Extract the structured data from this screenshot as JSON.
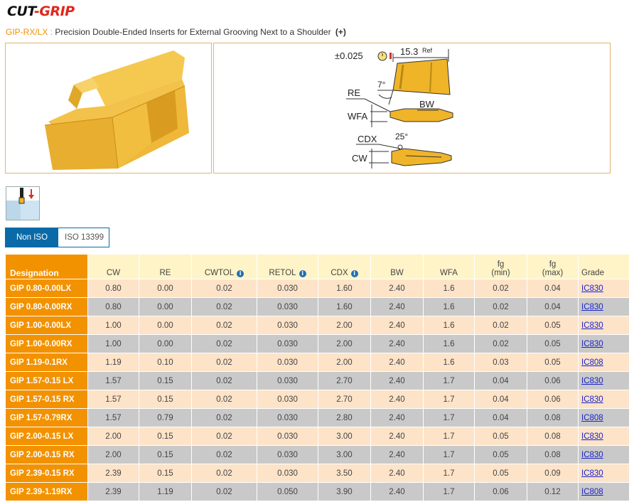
{
  "brand": {
    "part1": "CUT",
    "part2": "-GRIP"
  },
  "subtitle": {
    "code": "GIP-RX/LX :",
    "text": "Precision Double-Ended Inserts for External Grooving Next to a Shoulder",
    "plus": "(+)"
  },
  "drawing": {
    "tolerance": "±0.025",
    "ref_length": "15.3",
    "ref_label": "Ref",
    "angle_top": "7°",
    "angle_bottom": "25°",
    "re": "RE",
    "bw": "BW",
    "wfa": "WFA",
    "cdx": "CDX",
    "cw": "CW"
  },
  "units": {
    "options": [
      {
        "label": "Non ISO",
        "active": true
      },
      {
        "label": "ISO 13399",
        "active": false
      }
    ]
  },
  "table": {
    "headers": {
      "designation": "Designation",
      "cw": "CW",
      "re": "RE",
      "cwtol": "CWTOL",
      "retol": "RETOL",
      "cdx": "CDX",
      "bw": "BW",
      "wfa": "WFA",
      "fg_min_1": "fg",
      "fg_min_2": "(min)",
      "fg_max_1": "fg",
      "fg_max_2": "(max)",
      "grade": "Grade"
    },
    "rows": [
      [
        "GIP 0.80-0.00LX",
        "0.80",
        "0.00",
        "0.02",
        "0.030",
        "1.60",
        "2.40",
        "1.6",
        "0.02",
        "0.04",
        "IC830"
      ],
      [
        "GIP 0.80-0.00RX",
        "0.80",
        "0.00",
        "0.02",
        "0.030",
        "1.60",
        "2.40",
        "1.6",
        "0.02",
        "0.04",
        "IC830"
      ],
      [
        "GIP 1.00-0.00LX",
        "1.00",
        "0.00",
        "0.02",
        "0.030",
        "2.00",
        "2.40",
        "1.6",
        "0.02",
        "0.05",
        "IC830"
      ],
      [
        "GIP 1.00-0.00RX",
        "1.00",
        "0.00",
        "0.02",
        "0.030",
        "2.00",
        "2.40",
        "1.6",
        "0.02",
        "0.05",
        "IC830"
      ],
      [
        "GIP 1.19-0.1RX",
        "1.19",
        "0.10",
        "0.02",
        "0.030",
        "2.00",
        "2.40",
        "1.6",
        "0.03",
        "0.05",
        "IC808"
      ],
      [
        "GIP 1.57-0.15 LX",
        "1.57",
        "0.15",
        "0.02",
        "0.030",
        "2.70",
        "2.40",
        "1.7",
        "0.04",
        "0.06",
        "IC830"
      ],
      [
        "GIP 1.57-0.15 RX",
        "1.57",
        "0.15",
        "0.02",
        "0.030",
        "2.70",
        "2.40",
        "1.7",
        "0.04",
        "0.06",
        "IC830"
      ],
      [
        "GIP 1.57-0.79RX",
        "1.57",
        "0.79",
        "0.02",
        "0.030",
        "2.80",
        "2.40",
        "1.7",
        "0.04",
        "0.08",
        "IC808"
      ],
      [
        "GIP 2.00-0.15 LX",
        "2.00",
        "0.15",
        "0.02",
        "0.030",
        "3.00",
        "2.40",
        "1.7",
        "0.05",
        "0.08",
        "IC830"
      ],
      [
        "GIP 2.00-0.15 RX",
        "2.00",
        "0.15",
        "0.02",
        "0.030",
        "3.00",
        "2.40",
        "1.7",
        "0.05",
        "0.08",
        "IC830"
      ],
      [
        "GIP 2.39-0.15 RX",
        "2.39",
        "0.15",
        "0.02",
        "0.030",
        "3.50",
        "2.40",
        "1.7",
        "0.05",
        "0.09",
        "IC830"
      ],
      [
        "GIP 2.39-1.19RX",
        "2.39",
        "1.19",
        "0.02",
        "0.050",
        "3.90",
        "2.40",
        "1.7",
        "0.06",
        "0.12",
        "IC808"
      ]
    ]
  },
  "colors": {
    "orange": "#f39200",
    "gold": "#f0b429",
    "blue": "#0a6aa8",
    "row_light": "#fde3c8",
    "row_dark": "#c9c9c9",
    "link": "#1a22c8"
  }
}
